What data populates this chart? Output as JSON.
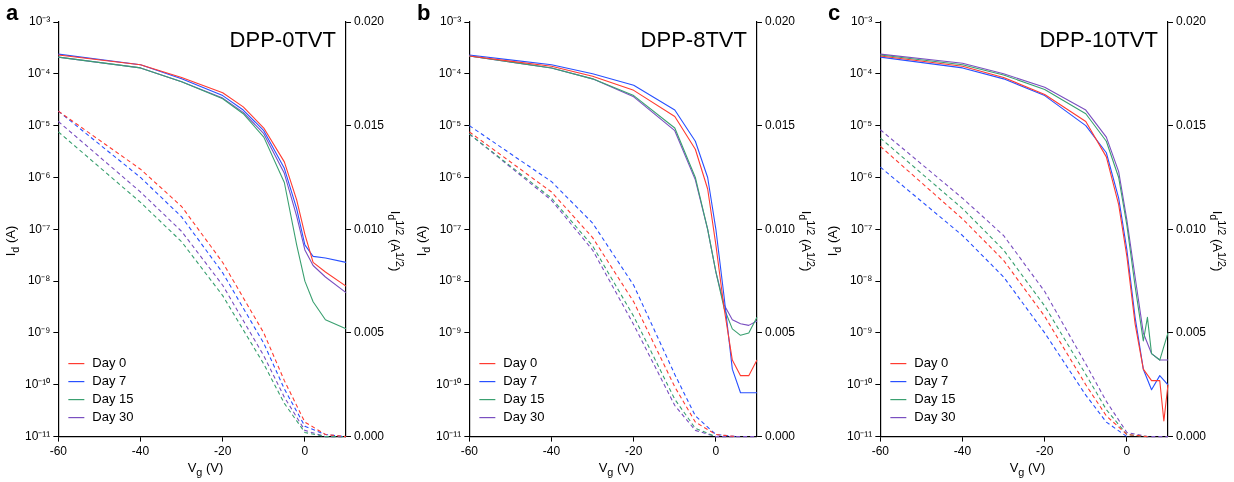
{
  "chart_data": [
    {
      "type": "line",
      "title": "DPP-0TVT",
      "annotations": [
        "a"
      ],
      "xlabel": "V$_{g}$ (V)",
      "ylabel": "I$_{d}$ (A)",
      "y2label": "I$_{d}$$^{1/2}$ (A$^{1/2}$)",
      "log": "y",
      "grid": false,
      "legend": "bottom left",
      "marker": "none",
      "xlim": [
        -60,
        10
      ],
      "xticks": [
        -60,
        -40,
        -20,
        0
      ],
      "ylim": [
        1e-11,
        0.001
      ],
      "yticks": [
        {
          "value": 0.001,
          "label": "10⁻³"
        },
        {
          "value": 0.0001,
          "label": "10⁻⁴"
        },
        {
          "value": 1e-05,
          "label": "10⁻⁵"
        },
        {
          "value": 1e-06,
          "label": "10⁻⁶"
        },
        {
          "value": 1e-07,
          "label": "10⁻⁷"
        },
        {
          "value": 1e-08,
          "label": "10⁻⁸"
        },
        {
          "value": 1e-09,
          "label": "10⁻⁹"
        },
        {
          "value": 1e-10,
          "label": "10⁻¹⁰"
        },
        {
          "value": 1e-11,
          "label": "10⁻¹¹"
        }
      ],
      "y2lim": [
        0,
        0.02
      ],
      "y2ticks": [
        {
          "value": 0,
          "label": "0.000"
        },
        {
          "value": 0.005,
          "label": "0.005"
        },
        {
          "value": 0.01,
          "label": "0.010"
        },
        {
          "value": 0.015,
          "label": "0.015"
        },
        {
          "value": 0.02,
          "label": "0.020"
        }
      ],
      "series": [
        {
          "name": "Day 0",
          "color": "#ff3b30",
          "line_style": "solid",
          "x": [
            -60,
            -40,
            -30,
            -20,
            -15,
            -10,
            -5,
            -2,
            0,
            2,
            5,
            10
          ],
          "values": [
            0.00023,
            0.00015,
            8.5e-05,
            4.3e-05,
            2.3e-05,
            9e-06,
            2e-06,
            3.7e-07,
            8e-08,
            2.3e-08,
            1.5e-08,
            8e-09
          ]
        },
        {
          "name": "Day 7",
          "color": "#2850ff",
          "line_style": "solid",
          "x": [
            -60,
            -40,
            -30,
            -20,
            -15,
            -10,
            -5,
            -2,
            0,
            2,
            5,
            10
          ],
          "values": [
            0.00024,
            0.00015,
            8e-05,
            3.8e-05,
            2e-05,
            8e-06,
            1.5e-06,
            2.5e-07,
            5e-08,
            3e-08,
            2.8e-08,
            2.3e-08
          ]
        },
        {
          "name": "Day 15",
          "color": "#3aa070",
          "line_style": "solid",
          "x": [
            -60,
            -40,
            -30,
            -20,
            -15,
            -10,
            -5,
            -2,
            0,
            2,
            5,
            10
          ],
          "values": [
            0.00021,
            0.00013,
            7e-05,
            3.3e-05,
            1.7e-05,
            6e-06,
            8e-07,
            5e-08,
            1e-08,
            4e-09,
            1.8e-09,
            1.2e-09
          ]
        },
        {
          "name": "Day 30",
          "color": "#7a4fc0",
          "line_style": "solid",
          "x": [
            -60,
            -40,
            -30,
            -20,
            -15,
            -10,
            -5,
            -2,
            0,
            2,
            5,
            10
          ],
          "values": [
            0.00021,
            0.00013,
            7e-05,
            3.4e-05,
            1.8e-05,
            7e-06,
            1.2e-06,
            1.8e-07,
            4e-08,
            2e-08,
            1.2e-08,
            6e-09
          ]
        },
        {
          "color": "#ff3b30",
          "line_style": "dashed",
          "axis": "y2",
          "x": [
            -60,
            -40,
            -30,
            -20,
            -10,
            -5,
            0,
            5,
            10
          ],
          "values": [
            0.0157,
            0.0129,
            0.0111,
            0.0084,
            0.005,
            0.0027,
            0.0007,
            0.0001,
            0
          ]
        },
        {
          "color": "#2850ff",
          "line_style": "dashed",
          "axis": "y2",
          "x": [
            -60,
            -40,
            -30,
            -20,
            -10,
            -5,
            0,
            5,
            10
          ],
          "values": [
            0.0157,
            0.0125,
            0.0106,
            0.0079,
            0.0045,
            0.0023,
            0.0005,
            0.0001,
            0
          ]
        },
        {
          "color": "#3aa070",
          "line_style": "dashed",
          "axis": "y2",
          "x": [
            -60,
            -40,
            -30,
            -20,
            -10,
            -5,
            0,
            5,
            10
          ],
          "values": [
            0.0147,
            0.0113,
            0.0094,
            0.0068,
            0.0035,
            0.0016,
            0.0002,
            0,
            0
          ]
        },
        {
          "color": "#7a4fc0",
          "line_style": "dashed",
          "axis": "y2",
          "x": [
            -60,
            -40,
            -30,
            -20,
            -10,
            -5,
            0,
            5,
            10
          ],
          "values": [
            0.0152,
            0.0118,
            0.0099,
            0.0073,
            0.0039,
            0.0019,
            0.0003,
            0,
            0
          ]
        }
      ]
    },
    {
      "type": "line",
      "title": "DPP-8TVT",
      "annotations": [
        "b"
      ],
      "xlabel": "V$_{g}$ (V)",
      "ylabel": "I$_{d}$ (A)",
      "y2label": "I$_{d}$$^{1/2}$ (A$^{1/2}$)",
      "log": "y",
      "grid": false,
      "legend": "bottom left",
      "marker": "none",
      "xlim": [
        -60,
        10
      ],
      "xticks": [
        -60,
        -40,
        -20,
        0
      ],
      "ylim": [
        1e-11,
        0.001
      ],
      "yticks": [
        {
          "value": 0.001,
          "label": "10⁻³"
        },
        {
          "value": 0.0001,
          "label": "10⁻⁴"
        },
        {
          "value": 1e-05,
          "label": "10⁻⁵"
        },
        {
          "value": 1e-06,
          "label": "10⁻⁶"
        },
        {
          "value": 1e-07,
          "label": "10⁻⁷"
        },
        {
          "value": 1e-08,
          "label": "10⁻⁸"
        },
        {
          "value": 1e-09,
          "label": "10⁻⁹"
        },
        {
          "value": 1e-10,
          "label": "10⁻¹⁰"
        },
        {
          "value": 1e-11,
          "label": "10⁻¹¹"
        }
      ],
      "y2lim": [
        0,
        0.02
      ],
      "y2ticks": [
        {
          "value": 0,
          "label": "0.000"
        },
        {
          "value": 0.005,
          "label": "0.005"
        },
        {
          "value": 0.01,
          "label": "0.010"
        },
        {
          "value": 0.015,
          "label": "0.015"
        },
        {
          "value": 0.02,
          "label": "0.020"
        }
      ],
      "series": [
        {
          "name": "Day 0",
          "color": "#ff3b30",
          "line_style": "solid",
          "x": [
            -60,
            -40,
            -30,
            -20,
            -10,
            -5,
            -2,
            0,
            2,
            4,
            6,
            8,
            10
          ],
          "values": [
            0.00022,
            0.00014,
            9e-05,
            4.8e-05,
            1.5e-05,
            3.5e-06,
            6e-07,
            5e-08,
            3e-09,
            3e-10,
            1.5e-10,
            1.5e-10,
            3e-10
          ]
        },
        {
          "name": "Day 7",
          "color": "#2850ff",
          "line_style": "solid",
          "x": [
            -60,
            -40,
            -30,
            -20,
            -10,
            -5,
            -2,
            0,
            2,
            4,
            6,
            8,
            10
          ],
          "values": [
            0.00023,
            0.00015,
            0.0001,
            6e-05,
            2e-05,
            5e-06,
            1e-06,
            1e-07,
            5e-09,
            2e-10,
            7e-11,
            7e-11,
            7e-11
          ]
        },
        {
          "name": "Day 15",
          "color": "#3aa070",
          "line_style": "solid",
          "x": [
            -60,
            -40,
            -30,
            -20,
            -10,
            -5,
            -2,
            0,
            2,
            4,
            6,
            8,
            10
          ],
          "values": [
            0.00022,
            0.00013,
            8e-05,
            3.8e-05,
            9e-06,
            1e-06,
            1e-07,
            1.5e-08,
            3e-09,
            1.2e-09,
            9e-10,
            1e-09,
            2e-09
          ]
        },
        {
          "name": "Day 30",
          "color": "#7a4fc0",
          "line_style": "solid",
          "x": [
            -60,
            -40,
            -30,
            -20,
            -10,
            -5,
            -2,
            0,
            2,
            4,
            6,
            8,
            10
          ],
          "values": [
            0.00022,
            0.00013,
            8e-05,
            3.6e-05,
            8e-06,
            9e-07,
            1e-07,
            1.5e-08,
            3.5e-09,
            1.8e-09,
            1.5e-09,
            1.4e-09,
            1.7e-09
          ]
        },
        {
          "color": "#ff3b30",
          "line_style": "dashed",
          "axis": "y2",
          "x": [
            -60,
            -40,
            -30,
            -20,
            -10,
            -5,
            0,
            5
          ],
          "values": [
            0.0147,
            0.0118,
            0.0096,
            0.0065,
            0.0024,
            0.0007,
            0.0001,
            0
          ]
        },
        {
          "color": "#2850ff",
          "line_style": "dashed",
          "axis": "y2",
          "x": [
            -60,
            -40,
            -30,
            -20,
            -10,
            -5,
            0,
            5
          ],
          "values": [
            0.015,
            0.0123,
            0.0103,
            0.0073,
            0.003,
            0.001,
            0.0001,
            0
          ]
        },
        {
          "color": "#3aa070",
          "line_style": "dashed",
          "axis": "y2",
          "x": [
            -60,
            -40,
            -30,
            -20,
            -10,
            -5,
            0
          ],
          "values": [
            0.0146,
            0.0115,
            0.0092,
            0.0058,
            0.0018,
            0.0004,
            0
          ]
        },
        {
          "color": "#7a4fc0",
          "line_style": "dashed",
          "axis": "y2",
          "x": [
            -60,
            -40,
            -30,
            -20,
            -10,
            -5,
            0,
            5,
            10
          ],
          "values": [
            0.0146,
            0.0114,
            0.009,
            0.0054,
            0.0015,
            0.0003,
            0,
            0,
            0
          ]
        }
      ]
    },
    {
      "type": "line",
      "title": "DPP-10TVT",
      "annotations": [
        "c"
      ],
      "xlabel": "V$_{g}$ (V)",
      "ylabel": "I$_{d}$ (A)",
      "y2label": "I$_{d}$$^{1/2}$ (A$^{1/2}$)",
      "log": "y",
      "grid": false,
      "legend": "bottom left",
      "marker": "none",
      "xlim": [
        -60,
        10
      ],
      "xticks": [
        -60,
        -40,
        -20,
        0
      ],
      "ylim": [
        1e-11,
        0.001
      ],
      "yticks": [
        {
          "value": 0.001,
          "label": "10⁻³"
        },
        {
          "value": 0.0001,
          "label": "10⁻⁴"
        },
        {
          "value": 1e-05,
          "label": "10⁻⁵"
        },
        {
          "value": 1e-06,
          "label": "10⁻⁶"
        },
        {
          "value": 1e-07,
          "label": "10⁻⁷"
        },
        {
          "value": 1e-08,
          "label": "10⁻⁸"
        },
        {
          "value": 1e-09,
          "label": "10⁻⁹"
        },
        {
          "value": 1e-10,
          "label": "10⁻¹⁰"
        },
        {
          "value": 1e-11,
          "label": "10⁻¹¹"
        }
      ],
      "y2lim": [
        0,
        0.02
      ],
      "y2ticks": [
        {
          "value": 0,
          "label": "0.000"
        },
        {
          "value": 0.005,
          "label": "0.005"
        },
        {
          "value": 0.01,
          "label": "0.010"
        },
        {
          "value": 0.015,
          "label": "0.015"
        },
        {
          "value": 0.02,
          "label": "0.020"
        }
      ],
      "series": [
        {
          "name": "Day 0",
          "color": "#ff3b30",
          "line_style": "solid",
          "x": [
            -60,
            -40,
            -30,
            -20,
            -10,
            -5,
            -2,
            0,
            2,
            4,
            6,
            8,
            9,
            10
          ],
          "values": [
            0.00022,
            0.00014,
            8.5e-05,
            4e-05,
            1.2e-05,
            2.5e-06,
            3e-07,
            3e-08,
            1.5e-09,
            2e-10,
            1.2e-10,
            1.2e-10,
            2e-11,
            1e-10
          ]
        },
        {
          "name": "Day 7",
          "color": "#2850ff",
          "line_style": "solid",
          "x": [
            -60,
            -40,
            -30,
            -20,
            -10,
            -5,
            -2,
            0,
            2,
            4,
            6,
            8,
            10
          ],
          "values": [
            0.00021,
            0.00013,
            8e-05,
            3.8e-05,
            1e-05,
            3e-06,
            4e-07,
            4e-08,
            2e-09,
            2e-10,
            8e-11,
            1.5e-10,
            1e-10
          ]
        },
        {
          "name": "Day 15",
          "color": "#3aa070",
          "line_style": "solid",
          "x": [
            -60,
            -40,
            -30,
            -20,
            -10,
            -5,
            -2,
            0,
            2,
            4,
            5,
            6,
            8,
            10
          ],
          "values": [
            0.00023,
            0.00015,
            9.5e-05,
            5e-05,
            1.7e-05,
            5e-06,
            1e-06,
            1.2e-07,
            8e-09,
            7e-10,
            2e-09,
            4e-10,
            3e-10,
            1e-09
          ]
        },
        {
          "name": "Day 30",
          "color": "#7a4fc0",
          "line_style": "solid",
          "x": [
            -60,
            -40,
            -30,
            -20,
            -10,
            -5,
            -2,
            0,
            2,
            4,
            6,
            8,
            10
          ],
          "values": [
            0.00024,
            0.00016,
            0.0001,
            5.5e-05,
            2e-05,
            6e-06,
            1.3e-06,
            1.5e-07,
            1.2e-08,
            1e-09,
            4e-10,
            3e-10,
            3e-10
          ]
        },
        {
          "color": "#ff3b30",
          "line_style": "dashed",
          "axis": "y2",
          "x": [
            -60,
            -40,
            -30,
            -20,
            -10,
            -5,
            0,
            5
          ],
          "values": [
            0.014,
            0.0105,
            0.0085,
            0.0058,
            0.0025,
            0.001,
            0.0001,
            0
          ]
        },
        {
          "color": "#2850ff",
          "line_style": "dashed",
          "axis": "y2",
          "x": [
            -60,
            -40,
            -30,
            -20,
            -10,
            -5,
            0
          ],
          "values": [
            0.013,
            0.0097,
            0.0077,
            0.005,
            0.002,
            0.0007,
            0
          ]
        },
        {
          "color": "#3aa070",
          "line_style": "dashed",
          "axis": "y2",
          "x": [
            -60,
            -40,
            -30,
            -20,
            -10,
            -5,
            0,
            5
          ],
          "values": [
            0.0144,
            0.011,
            0.009,
            0.0063,
            0.003,
            0.0013,
            0.0001,
            0
          ]
        },
        {
          "color": "#7a4fc0",
          "line_style": "dashed",
          "axis": "y2",
          "x": [
            -60,
            -40,
            -30,
            -20,
            -10,
            -5,
            0,
            5,
            10
          ],
          "values": [
            0.0148,
            0.0115,
            0.0097,
            0.007,
            0.0035,
            0.0017,
            0.0002,
            0,
            0
          ]
        }
      ]
    }
  ]
}
